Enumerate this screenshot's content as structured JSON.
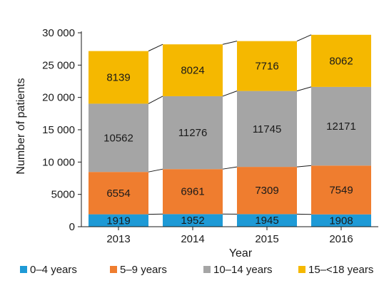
{
  "chart_data": {
    "type": "bar",
    "stacked": true,
    "categories": [
      "2013",
      "2014",
      "2015",
      "2016"
    ],
    "series": [
      {
        "name": "0–4 years",
        "color": "#1e9ad6",
        "values": [
          1919,
          1952,
          1945,
          1908
        ]
      },
      {
        "name": "5–9 years",
        "color": "#ef7d2f",
        "values": [
          6554,
          6961,
          7309,
          7549
        ]
      },
      {
        "name": "10–14 years",
        "color": "#a5a5a5",
        "values": [
          10562,
          11276,
          11745,
          12171
        ]
      },
      {
        "name": "15–<18 years",
        "color": "#f5b800",
        "values": [
          8139,
          8024,
          7716,
          8062
        ]
      }
    ],
    "title": "",
    "xlabel": "Year",
    "ylabel": "Number of patients",
    "ylim": [
      0,
      30000
    ],
    "yticks": [
      0,
      5000,
      10000,
      15000,
      20000,
      25000,
      30000
    ],
    "ytick_labels": [
      "0",
      "5000",
      "10 000",
      "15 000",
      "20 000",
      "25 000",
      "30 000"
    ],
    "connector_lines": true,
    "grid": false,
    "legend_position": "bottom"
  }
}
